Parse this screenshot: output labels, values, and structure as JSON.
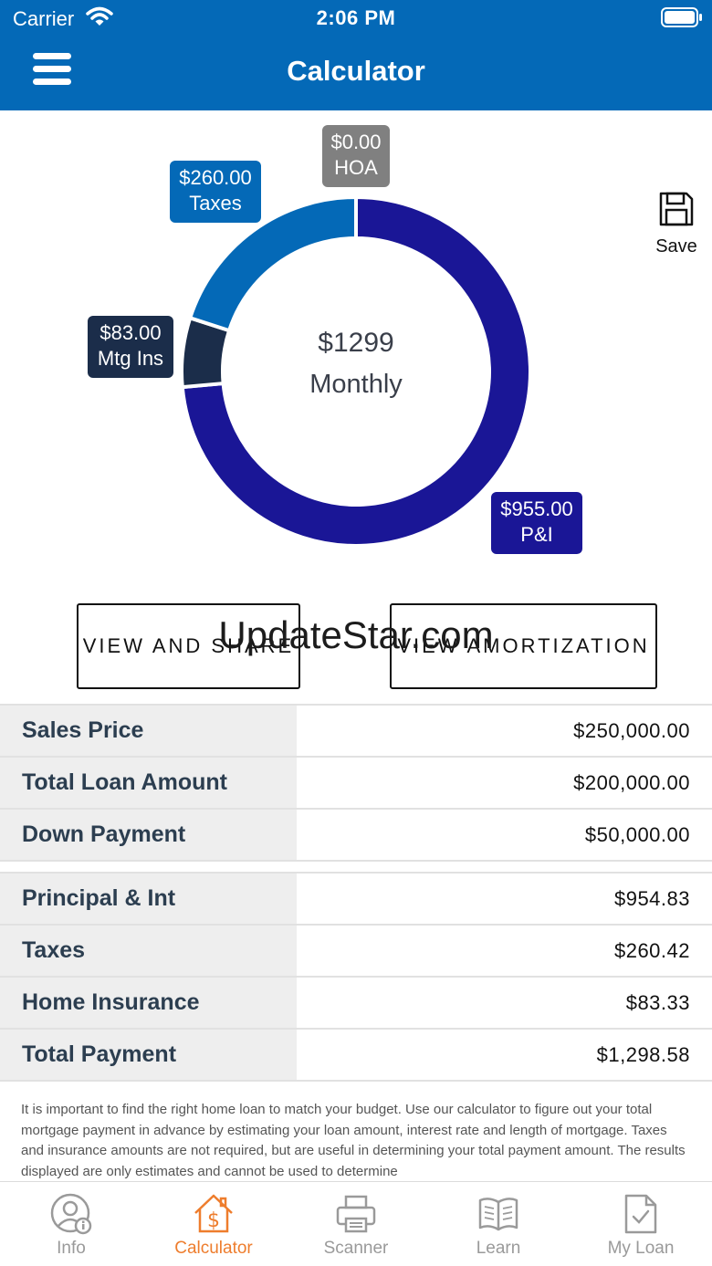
{
  "status_bar": {
    "carrier": "Carrier",
    "time": "2:06 PM"
  },
  "header": {
    "title": "Calculator"
  },
  "chart": {
    "center_amount": "$1299",
    "center_label": "Monthly",
    "segments": [
      {
        "key": "pi",
        "amount": "$955.00",
        "label": "P&I",
        "value": 955,
        "color": "#1a1696"
      },
      {
        "key": "mtg",
        "amount": "$83.00",
        "label": "Mtg Ins",
        "value": 83,
        "color": "#1b2d4a"
      },
      {
        "key": "taxes",
        "amount": "$260.00",
        "label": "Taxes",
        "value": 260,
        "color": "#0469b7"
      },
      {
        "key": "hoa",
        "amount": "$0.00",
        "label": "HOA",
        "value": 0,
        "color": "#808080"
      }
    ]
  },
  "save": {
    "label": "Save"
  },
  "buttons": {
    "view_share": "VIEW AND SHARE",
    "view_amortization": "VIEW AMORTIZATION"
  },
  "watermark": "UpdateStar.com",
  "loan_table": [
    {
      "label": "Sales Price",
      "value": "$250,000.00"
    },
    {
      "label": "Total Loan Amount",
      "value": "$200,000.00"
    },
    {
      "label": "Down Payment",
      "value": "$50,000.00"
    }
  ],
  "payment_table": [
    {
      "label": "Principal & Int",
      "value": "$954.83"
    },
    {
      "label": "Taxes",
      "value": "$260.42"
    },
    {
      "label": "Home Insurance",
      "value": "$83.33"
    },
    {
      "label": "Total Payment",
      "value": "$1,298.58"
    }
  ],
  "disclaimer": "It is important to find the right home loan to match your budget. Use our calculator to figure out your total mortgage payment in advance by estimating your loan amount, interest rate and length of mortgage. Taxes and insurance amounts are not required, but are useful in determining your total payment amount. The results displayed are only estimates and cannot be used to determine",
  "tabs": [
    {
      "label": "Info",
      "icon": "user-info-icon",
      "active": false
    },
    {
      "label": "Calculator",
      "icon": "house-dollar-icon",
      "active": true
    },
    {
      "label": "Scanner",
      "icon": "printer-icon",
      "active": false
    },
    {
      "label": "Learn",
      "icon": "book-icon",
      "active": false
    },
    {
      "label": "My Loan",
      "icon": "document-check-icon",
      "active": false
    }
  ],
  "colors": {
    "brand_blue": "#0469b7",
    "accent_orange": "#ee7d2d"
  }
}
